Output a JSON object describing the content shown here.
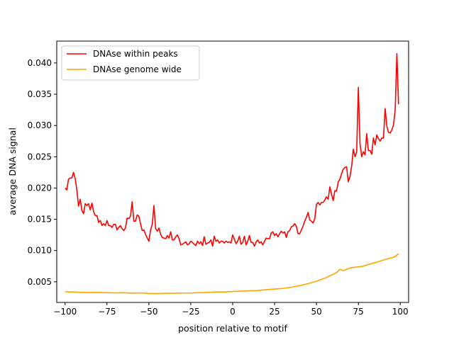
{
  "chart_data": {
    "type": "line",
    "title": "",
    "xlabel": "position relative to motif",
    "ylabel": "average DNA signal",
    "xlim": [
      -105,
      105
    ],
    "ylim": [
      0.0017,
      0.0435
    ],
    "x_ticks": [
      -100,
      -75,
      -50,
      -25,
      0,
      25,
      50,
      75,
      100
    ],
    "x_tick_labels": [
      "−100",
      "−75",
      "−50",
      "−25",
      "0",
      "25",
      "50",
      "75",
      "100"
    ],
    "y_ticks": [
      0.005,
      0.01,
      0.015,
      0.02,
      0.025,
      0.03,
      0.035,
      0.04
    ],
    "y_tick_labels": [
      "0.005",
      "0.010",
      "0.015",
      "0.020",
      "0.025",
      "0.030",
      "0.035",
      "0.040"
    ],
    "grid": false,
    "legend_position": "upper-left",
    "series": [
      {
        "name": "DNAse within peaks",
        "color": "#ff0000",
        "points": [
          [
            -100,
            0.02
          ],
          [
            -99,
            0.0197
          ],
          [
            -98,
            0.0214
          ],
          [
            -97,
            0.0216
          ],
          [
            -96,
            0.0216
          ],
          [
            -95,
            0.0225
          ],
          [
            -94,
            0.0215
          ],
          [
            -93,
            0.0197
          ],
          [
            -92,
            0.0171
          ],
          [
            -91,
            0.0182
          ],
          [
            -90,
            0.0164
          ],
          [
            -89,
            0.0159
          ],
          [
            -88,
            0.0175
          ],
          [
            -87,
            0.0172
          ],
          [
            -86,
            0.0175
          ],
          [
            -85,
            0.0165
          ],
          [
            -84,
            0.0176
          ],
          [
            -83,
            0.0162
          ],
          [
            -82,
            0.0156
          ],
          [
            -81,
            0.0156
          ],
          [
            -80,
            0.0145
          ],
          [
            -79,
            0.0148
          ],
          [
            -78,
            0.014
          ],
          [
            -77,
            0.0143
          ],
          [
            -76,
            0.014
          ],
          [
            -75,
            0.0148
          ],
          [
            -74,
            0.014
          ],
          [
            -73,
            0.014
          ],
          [
            -72,
            0.0137
          ],
          [
            -71,
            0.0142
          ],
          [
            -70,
            0.0142
          ],
          [
            -69,
            0.0133
          ],
          [
            -68,
            0.0137
          ],
          [
            -67,
            0.014
          ],
          [
            -66,
            0.0135
          ],
          [
            -65,
            0.0132
          ],
          [
            -64,
            0.0136
          ],
          [
            -63,
            0.0152
          ],
          [
            -62,
            0.0151
          ],
          [
            -61,
            0.0155
          ],
          [
            -60,
            0.0178
          ],
          [
            -59,
            0.0147
          ],
          [
            -58,
            0.0147
          ],
          [
            -57,
            0.0157
          ],
          [
            -56,
            0.0155
          ],
          [
            -55,
            0.0143
          ],
          [
            -54,
            0.0132
          ],
          [
            -53,
            0.0133
          ],
          [
            -52,
            0.0126
          ],
          [
            -51,
            0.012
          ],
          [
            -50,
            0.0115
          ],
          [
            -49,
            0.0133
          ],
          [
            -48,
            0.0142
          ],
          [
            -47,
            0.0172
          ],
          [
            -46,
            0.0135
          ],
          [
            -45,
            0.0131
          ],
          [
            -44,
            0.0136
          ],
          [
            -43,
            0.0126
          ],
          [
            -42,
            0.0121
          ],
          [
            -41,
            0.012
          ],
          [
            -40,
            0.0119
          ],
          [
            -39,
            0.0124
          ],
          [
            -38,
            0.012
          ],
          [
            -37,
            0.013
          ],
          [
            -36,
            0.0117
          ],
          [
            -35,
            0.0117
          ],
          [
            -34,
            0.0122
          ],
          [
            -33,
            0.0125
          ],
          [
            -32,
            0.0119
          ],
          [
            -31,
            0.0109
          ],
          [
            -30,
            0.011
          ],
          [
            -29,
            0.0112
          ],
          [
            -28,
            0.0114
          ],
          [
            -27,
            0.0109
          ],
          [
            -26,
            0.0111
          ],
          [
            -25,
            0.0115
          ],
          [
            -24,
            0.0113
          ],
          [
            -23,
            0.011
          ],
          [
            -22,
            0.0108
          ],
          [
            -21,
            0.0115
          ],
          [
            -20,
            0.0111
          ],
          [
            -19,
            0.0114
          ],
          [
            -18,
            0.0108
          ],
          [
            -17,
            0.0122
          ],
          [
            -16,
            0.011
          ],
          [
            -15,
            0.0112
          ],
          [
            -14,
            0.0113
          ],
          [
            -13,
            0.0117
          ],
          [
            -12,
            0.0107
          ],
          [
            -11,
            0.0123
          ],
          [
            -10,
            0.0115
          ],
          [
            -9,
            0.0117
          ],
          [
            -8,
            0.0112
          ],
          [
            -7,
            0.0115
          ],
          [
            -6,
            0.0115
          ],
          [
            -5,
            0.0112
          ],
          [
            -4,
            0.0115
          ],
          [
            -3,
            0.0113
          ],
          [
            -2,
            0.0114
          ],
          [
            -1,
            0.0112
          ],
          [
            0,
            0.0125
          ],
          [
            1,
            0.0118
          ],
          [
            2,
            0.0111
          ],
          [
            3,
            0.0115
          ],
          [
            4,
            0.0123
          ],
          [
            5,
            0.011
          ],
          [
            6,
            0.0113
          ],
          [
            7,
            0.0123
          ],
          [
            8,
            0.0109
          ],
          [
            9,
            0.0115
          ],
          [
            10,
            0.0124
          ],
          [
            11,
            0.0113
          ],
          [
            12,
            0.0113
          ],
          [
            13,
            0.0107
          ],
          [
            14,
            0.0114
          ],
          [
            15,
            0.0117
          ],
          [
            16,
            0.0112
          ],
          [
            17,
            0.0114
          ],
          [
            18,
            0.0109
          ],
          [
            19,
            0.0115
          ],
          [
            20,
            0.012
          ],
          [
            21,
            0.0119
          ],
          [
            22,
            0.0119
          ],
          [
            23,
            0.0128
          ],
          [
            24,
            0.013
          ],
          [
            25,
            0.0124
          ],
          [
            26,
            0.0127
          ],
          [
            27,
            0.0122
          ],
          [
            28,
            0.0127
          ],
          [
            29,
            0.0131
          ],
          [
            30,
            0.0128
          ],
          [
            31,
            0.013
          ],
          [
            32,
            0.0121
          ],
          [
            33,
            0.013
          ],
          [
            34,
            0.0132
          ],
          [
            35,
            0.0138
          ],
          [
            36,
            0.0139
          ],
          [
            37,
            0.0143
          ],
          [
            38,
            0.0139
          ],
          [
            39,
            0.0127
          ],
          [
            40,
            0.0127
          ],
          [
            41,
            0.0133
          ],
          [
            42,
            0.0139
          ],
          [
            43,
            0.0147
          ],
          [
            44,
            0.0153
          ],
          [
            45,
            0.0161
          ],
          [
            46,
            0.0149
          ],
          [
            47,
            0.0147
          ],
          [
            48,
            0.0144
          ],
          [
            49,
            0.0151
          ],
          [
            50,
            0.0174
          ],
          [
            51,
            0.0177
          ],
          [
            52,
            0.0173
          ],
          [
            53,
            0.0177
          ],
          [
            54,
            0.0177
          ],
          [
            55,
            0.0181
          ],
          [
            56,
            0.0186
          ],
          [
            57,
            0.0182
          ],
          [
            58,
            0.0202
          ],
          [
            59,
            0.019
          ],
          [
            60,
            0.018
          ],
          [
            61,
            0.0196
          ],
          [
            62,
            0.0195
          ],
          [
            63,
            0.021
          ],
          [
            64,
            0.0214
          ],
          [
            65,
            0.0223
          ],
          [
            66,
            0.023
          ],
          [
            67,
            0.0233
          ],
          [
            68,
            0.0234
          ],
          [
            69,
            0.021
          ],
          [
            70,
            0.0218
          ],
          [
            71,
            0.0235
          ],
          [
            72,
            0.0262
          ],
          [
            73,
            0.025
          ],
          [
            74,
            0.0258
          ],
          [
            75,
            0.0361
          ],
          [
            76,
            0.0271
          ],
          [
            77,
            0.025
          ],
          [
            78,
            0.0258
          ],
          [
            79,
            0.0253
          ],
          [
            80,
            0.0287
          ],
          [
            81,
            0.026
          ],
          [
            82,
            0.026
          ],
          [
            83,
            0.0254
          ],
          [
            84,
            0.028
          ],
          [
            85,
            0.0269
          ],
          [
            86,
            0.0285
          ],
          [
            87,
            0.0279
          ],
          [
            88,
            0.0275
          ],
          [
            89,
            0.028
          ],
          [
            90,
            0.028
          ],
          [
            91,
            0.0327
          ],
          [
            92,
            0.0299
          ],
          [
            93,
            0.0289
          ],
          [
            94,
            0.0288
          ],
          [
            95,
            0.0293
          ],
          [
            96,
            0.0301
          ],
          [
            97,
            0.0325
          ],
          [
            98,
            0.0415
          ],
          [
            99,
            0.0334
          ]
        ]
      },
      {
        "name": "DNAse genome wide",
        "color": "#ffa500",
        "points": [
          [
            -100,
            0.0034
          ],
          [
            -95,
            0.00338
          ],
          [
            -90,
            0.00332
          ],
          [
            -85,
            0.00328
          ],
          [
            -80,
            0.00332
          ],
          [
            -75,
            0.00326
          ],
          [
            -70,
            0.00322
          ],
          [
            -65,
            0.00326
          ],
          [
            -60,
            0.00318
          ],
          [
            -55,
            0.00322
          ],
          [
            -50,
            0.00314
          ],
          [
            -45,
            0.00312
          ],
          [
            -40,
            0.00316
          ],
          [
            -35,
            0.00316
          ],
          [
            -30,
            0.0032
          ],
          [
            -25,
            0.0032
          ],
          [
            -20,
            0.00328
          ],
          [
            -15,
            0.00332
          ],
          [
            -10,
            0.00338
          ],
          [
            -5,
            0.00338
          ],
          [
            0,
            0.00345
          ],
          [
            5,
            0.0035
          ],
          [
            10,
            0.00358
          ],
          [
            15,
            0.0036
          ],
          [
            20,
            0.00375
          ],
          [
            25,
            0.00385
          ],
          [
            30,
            0.00395
          ],
          [
            35,
            0.00412
          ],
          [
            40,
            0.0044
          ],
          [
            45,
            0.0047
          ],
          [
            50,
            0.0051
          ],
          [
            55,
            0.0056
          ],
          [
            60,
            0.0062
          ],
          [
            62,
            0.0065
          ],
          [
            64,
            0.007
          ],
          [
            66,
            0.0068
          ],
          [
            68,
            0.007
          ],
          [
            70,
            0.0072
          ],
          [
            72,
            0.0073
          ],
          [
            75,
            0.0074
          ],
          [
            78,
            0.0075
          ],
          [
            80,
            0.0077
          ],
          [
            83,
            0.0079
          ],
          [
            86,
            0.00815
          ],
          [
            89,
            0.0084
          ],
          [
            92,
            0.00865
          ],
          [
            95,
            0.00885
          ],
          [
            97,
            0.00905
          ],
          [
            99,
            0.0095
          ]
        ]
      }
    ]
  }
}
